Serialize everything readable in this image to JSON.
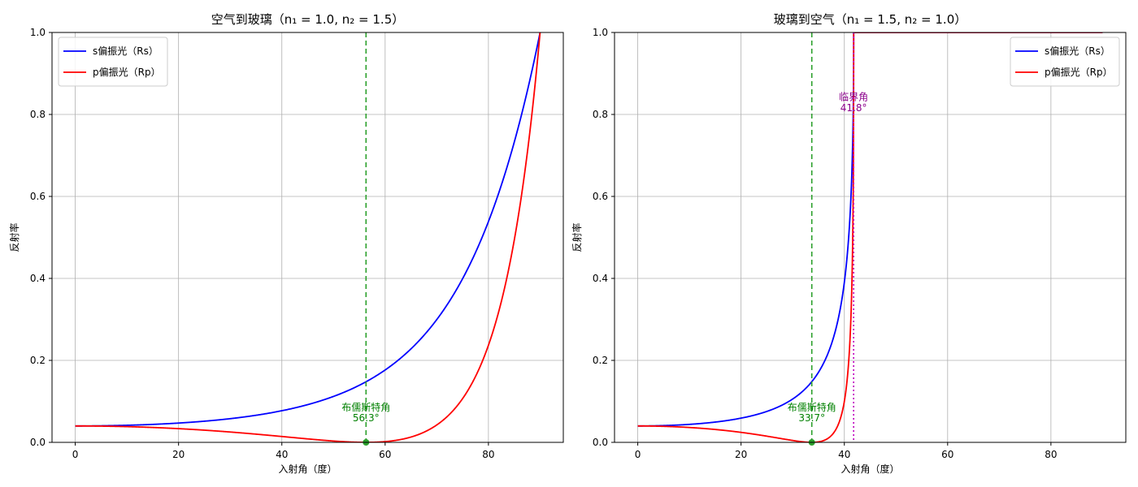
{
  "chart_data": [
    {
      "type": "line",
      "title": "空气到玻璃（n₁ = 1.0,  n₂ = 1.5）",
      "xlabel": "入射角（度）",
      "ylabel": "反射率",
      "xlim": [
        -4.5,
        94.5
      ],
      "ylim": [
        0,
        1.0
      ],
      "xticks": [
        0,
        20,
        40,
        60,
        80
      ],
      "yticks": [
        0.0,
        0.2,
        0.4,
        0.6,
        0.8,
        1.0
      ],
      "grid": true,
      "legend_position": "upper-left",
      "n1": 1.0,
      "n2": 1.5,
      "series": [
        {
          "name": "s偏振光（Rs）",
          "color": "#0000ff",
          "kind": "Rs"
        },
        {
          "name": "p偏振光（Rp）",
          "color": "#ff0000",
          "kind": "Rp"
        }
      ],
      "brewster": {
        "angle": 56.3,
        "label": "布儒斯特角",
        "value_text": "56.3°",
        "color": "#2ca02c"
      }
    },
    {
      "type": "line",
      "title": "玻璃到空气（n₁ = 1.5,  n₂ = 1.0）",
      "xlabel": "入射角（度）",
      "ylabel": "反射率",
      "xlim": [
        -4.5,
        94.5
      ],
      "ylim": [
        0,
        1.0
      ],
      "xticks": [
        0,
        20,
        40,
        60,
        80
      ],
      "yticks": [
        0.0,
        0.2,
        0.4,
        0.6,
        0.8,
        1.0
      ],
      "grid": true,
      "legend_position": "upper-right",
      "n1": 1.5,
      "n2": 1.0,
      "series": [
        {
          "name": "s偏振光（Rs）",
          "color": "#0000ff",
          "kind": "Rs"
        },
        {
          "name": "p偏振光（Rp）",
          "color": "#ff0000",
          "kind": "Rp"
        }
      ],
      "brewster": {
        "angle": 33.7,
        "label": "布儒斯特角",
        "value_text": "33.7°",
        "color": "#2ca02c"
      },
      "critical": {
        "angle": 41.8,
        "label": "临界角",
        "value_text": "41.8°",
        "color": "#8b008b",
        "line_color": "#bf00bf"
      }
    }
  ]
}
